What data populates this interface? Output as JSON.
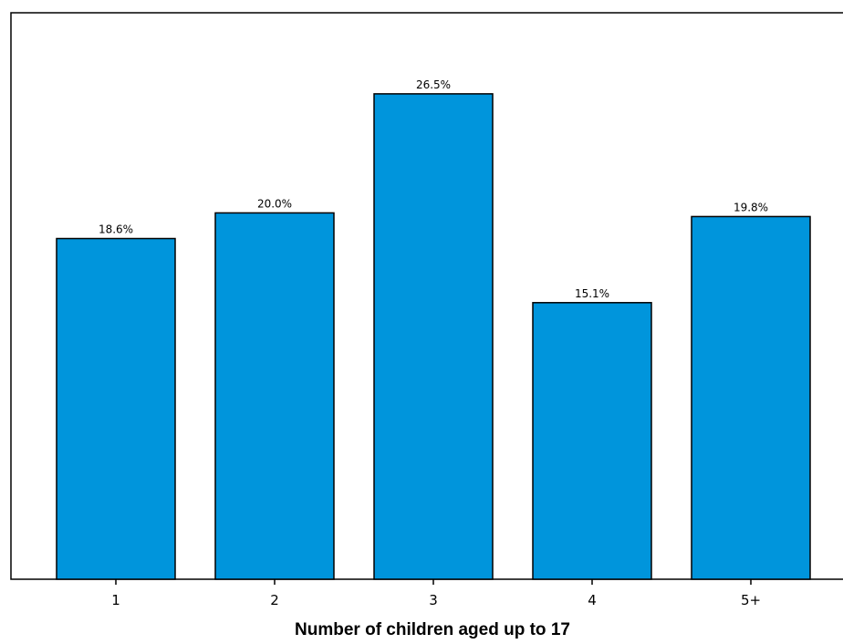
{
  "chart_data": {
    "type": "bar",
    "categories": [
      "1",
      "2",
      "3",
      "4",
      "5+"
    ],
    "values": [
      18.6,
      20.0,
      26.5,
      15.1,
      19.8
    ],
    "value_labels": [
      "18.6%",
      "20.0%",
      "26.5%",
      "15.1%",
      "19.8%"
    ],
    "title": "",
    "xlabel": "Number of children aged up to 17",
    "ylabel": "",
    "ylim": [
      0,
      30
    ],
    "grid": false,
    "legend": "none",
    "bar_color": "#0095dc"
  }
}
